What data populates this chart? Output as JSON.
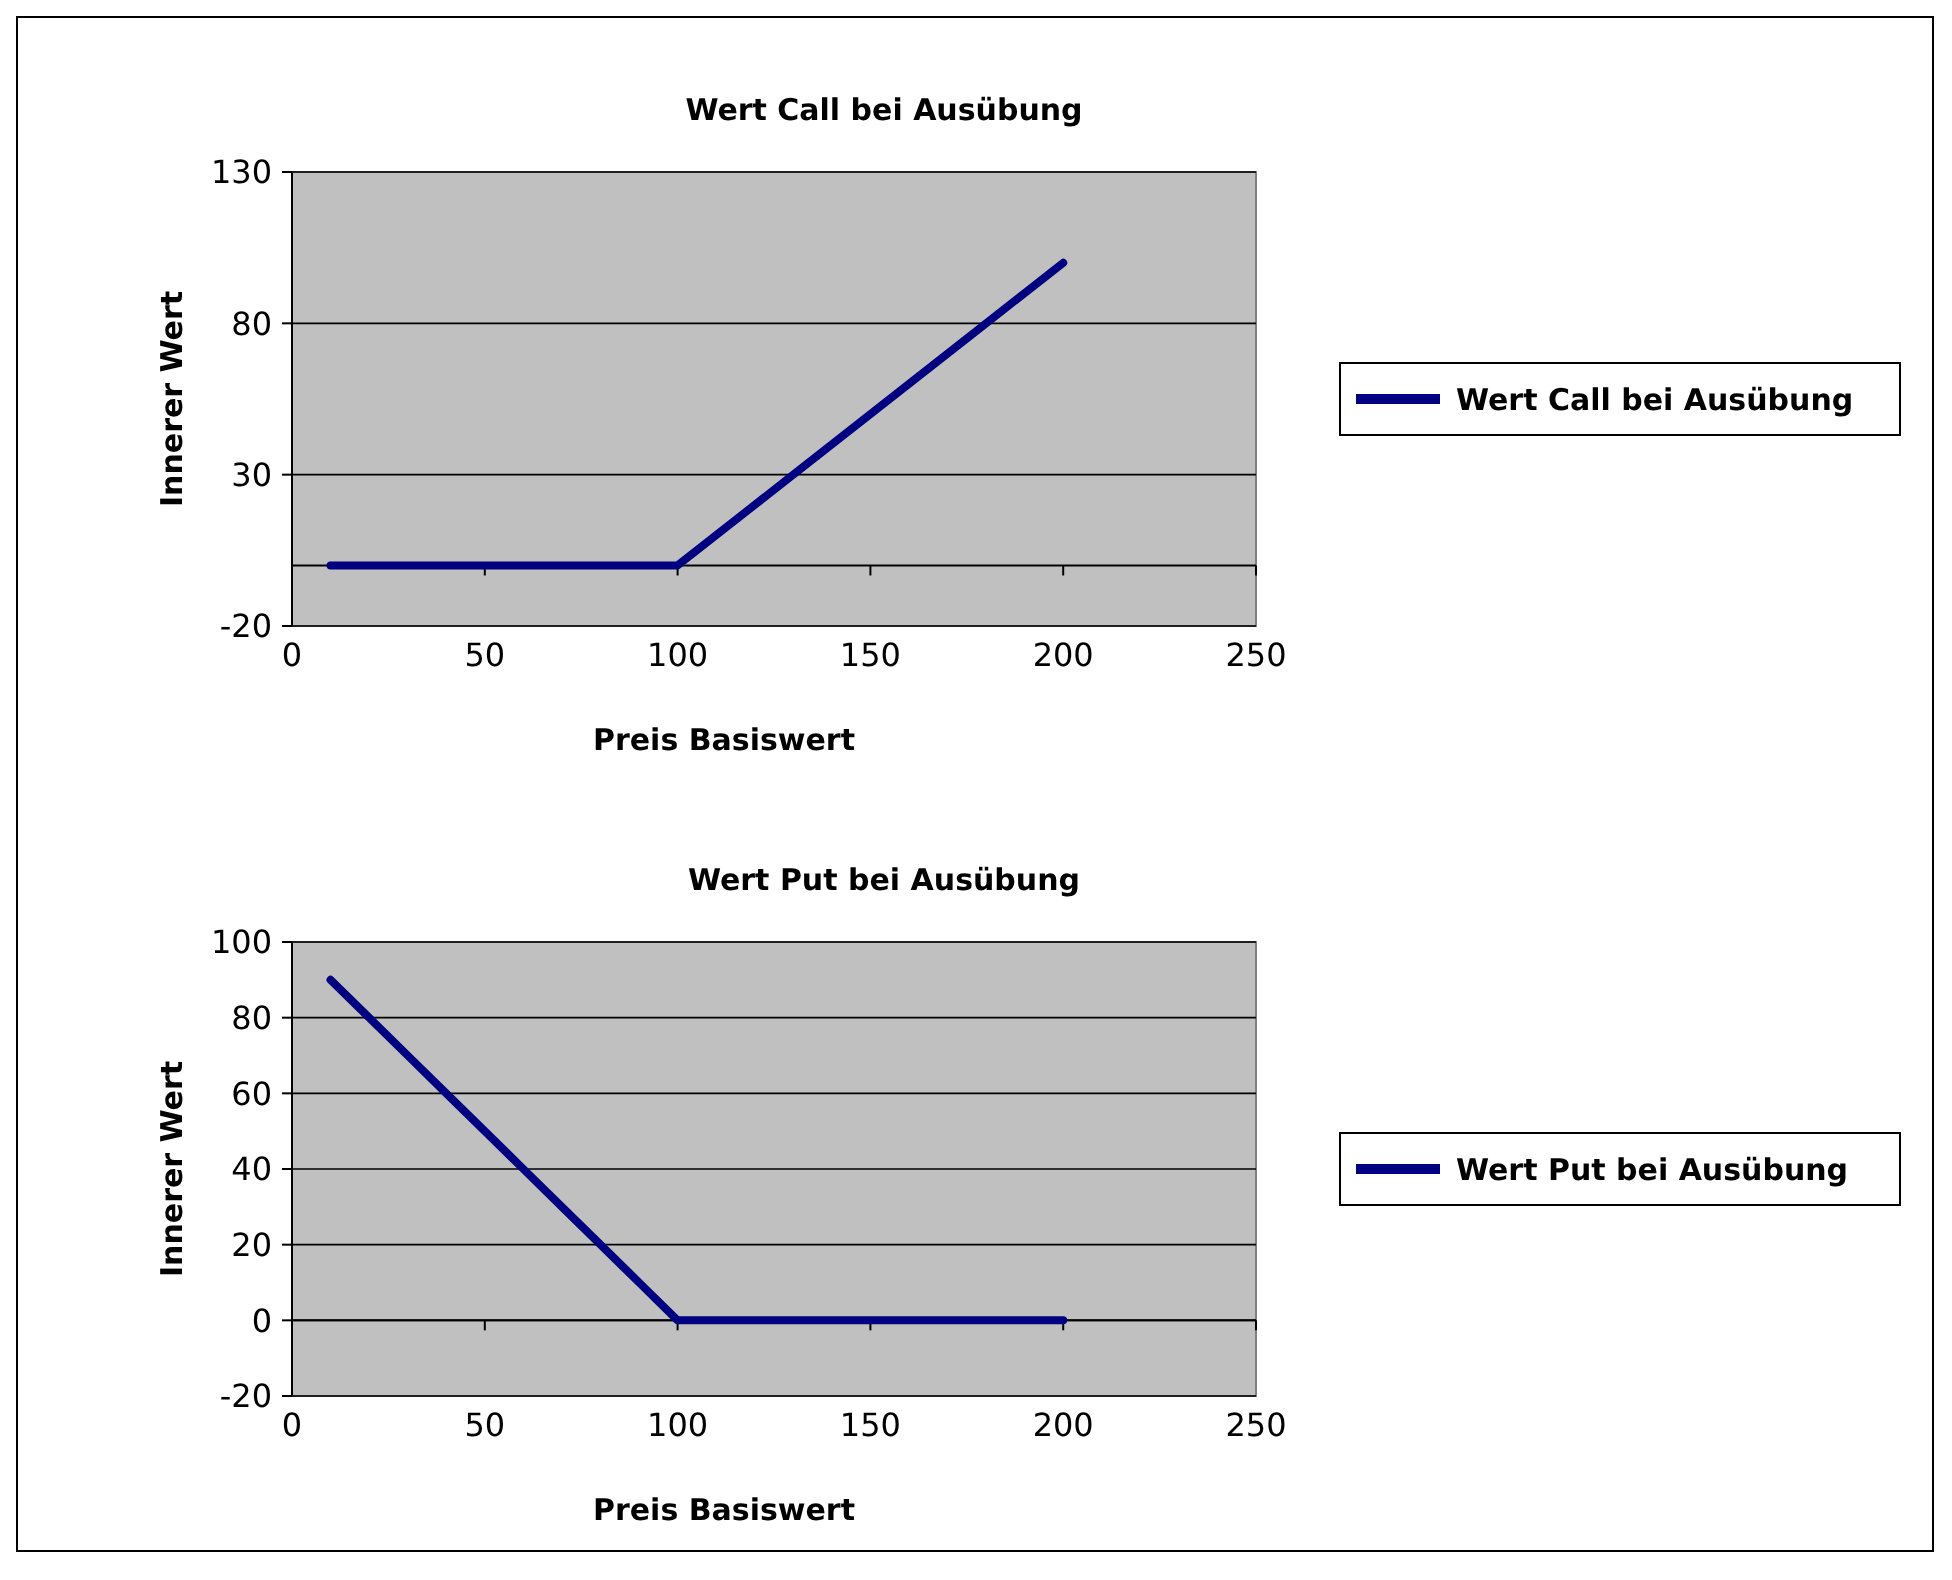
{
  "chart_data": [
    {
      "type": "line",
      "title": "Wert Call bei Ausübung",
      "xlabel": "Preis Basiswert",
      "ylabel": "Innerer Wert",
      "x": [
        10,
        20,
        30,
        40,
        50,
        60,
        70,
        80,
        90,
        100,
        110,
        120,
        130,
        140,
        150,
        160,
        170,
        180,
        190,
        200
      ],
      "series": [
        {
          "name": "Wert Call bei Ausübung",
          "color": "#000080",
          "values": [
            0,
            0,
            0,
            0,
            0,
            0,
            0,
            0,
            0,
            0,
            10,
            20,
            30,
            40,
            50,
            60,
            70,
            80,
            90,
            100
          ]
        }
      ],
      "xlim": [
        0,
        250
      ],
      "xticks": [
        0,
        50,
        100,
        150,
        200,
        250
      ],
      "ylim": [
        -20,
        130
      ],
      "yticks": [
        -20,
        30,
        80,
        130
      ],
      "grid": "y",
      "legend": "right",
      "marker": "none"
    },
    {
      "type": "line",
      "title": "Wert Put bei Ausübung",
      "xlabel": "Preis Basiswert",
      "ylabel": "Innerer Wert",
      "x": [
        10,
        20,
        30,
        40,
        50,
        60,
        70,
        80,
        90,
        100,
        110,
        120,
        130,
        140,
        150,
        160,
        170,
        180,
        190,
        200
      ],
      "series": [
        {
          "name": "Wert Put bei Ausübung",
          "color": "#000080",
          "values": [
            90,
            80,
            70,
            60,
            50,
            40,
            30,
            20,
            10,
            0,
            0,
            0,
            0,
            0,
            0,
            0,
            0,
            0,
            0,
            0
          ]
        }
      ],
      "xlim": [
        0,
        250
      ],
      "xticks": [
        0,
        50,
        100,
        150,
        200,
        250
      ],
      "ylim": [
        -20,
        100
      ],
      "yticks": [
        -20,
        0,
        20,
        40,
        60,
        80,
        100
      ],
      "grid": "y",
      "legend": "right",
      "marker": "none"
    }
  ]
}
